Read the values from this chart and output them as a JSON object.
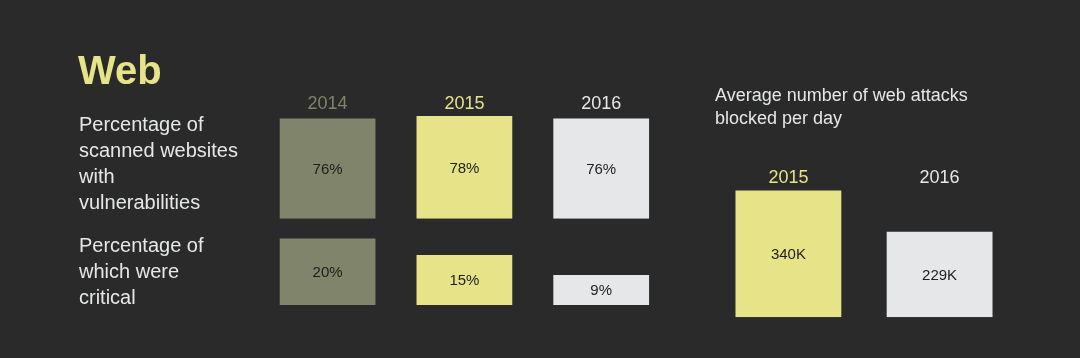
{
  "chart_data": [
    {
      "type": "bar",
      "title": "Web",
      "ylabel": "Percentage of scanned websites with vulnerabilities",
      "categories": [
        "2014",
        "2015",
        "2016"
      ],
      "values": [
        76,
        78,
        76
      ],
      "colors": [
        "#7f846a",
        "#e6e388",
        "#e6e7e8"
      ],
      "value_labels": [
        "76%",
        "78%",
        "76%"
      ]
    },
    {
      "type": "bar",
      "ylabel": "Percentage of which were critical",
      "categories": [
        "2014",
        "2015",
        "2016"
      ],
      "values": [
        20,
        15,
        9
      ],
      "colors": [
        "#7f846a",
        "#e6e388",
        "#e6e7e8"
      ],
      "value_labels": [
        "20%",
        "15%",
        "9%"
      ],
      "tick_labels": false
    },
    {
      "type": "bar",
      "title": "Average number of web attacks blocked per day",
      "categories": [
        "2015",
        "2016"
      ],
      "values": [
        340,
        229
      ],
      "colors": [
        "#e6e388",
        "#e6e7e8"
      ],
      "value_labels": [
        "340K",
        "229K"
      ]
    }
  ]
}
